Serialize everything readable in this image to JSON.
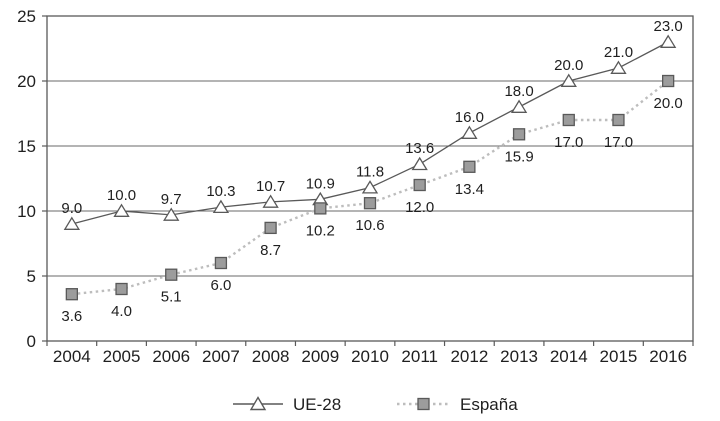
{
  "chart_data": {
    "type": "line",
    "title": "",
    "xlabel": "",
    "ylabel": "",
    "categories": [
      "2004",
      "2005",
      "2006",
      "2007",
      "2008",
      "2009",
      "2010",
      "2011",
      "2012",
      "2013",
      "2014",
      "2015",
      "2016"
    ],
    "series": [
      {
        "name": "UE-28",
        "values": [
          9.0,
          10.0,
          9.7,
          10.3,
          10.7,
          10.9,
          11.8,
          13.6,
          16.0,
          18.0,
          20.0,
          21.0,
          23.0
        ],
        "marker": "triangle",
        "line_style": "solid",
        "line_color": "#595959",
        "marker_fill": "#ffffff",
        "marker_stroke": "#595959",
        "label_position": "above"
      },
      {
        "name": "España",
        "values": [
          3.6,
          4.0,
          5.1,
          6.0,
          8.7,
          10.2,
          10.6,
          12.0,
          13.4,
          15.9,
          17.0,
          17.0,
          20.0
        ],
        "marker": "square",
        "line_style": "dotted",
        "line_color": "#bdbdbd",
        "marker_fill": "#9c9c9c",
        "marker_stroke": "#595959",
        "label_position": "below"
      }
    ],
    "ylim": [
      0,
      25
    ],
    "yticks": [
      0,
      5,
      10,
      15,
      20,
      25
    ],
    "grid": "horizontal",
    "legend_position": "bottom",
    "label_decimals": 1
  },
  "colors": {
    "axis": "#595959",
    "grid": "#6a6a6a",
    "text": "#1f1f1f",
    "background": "#ffffff"
  }
}
